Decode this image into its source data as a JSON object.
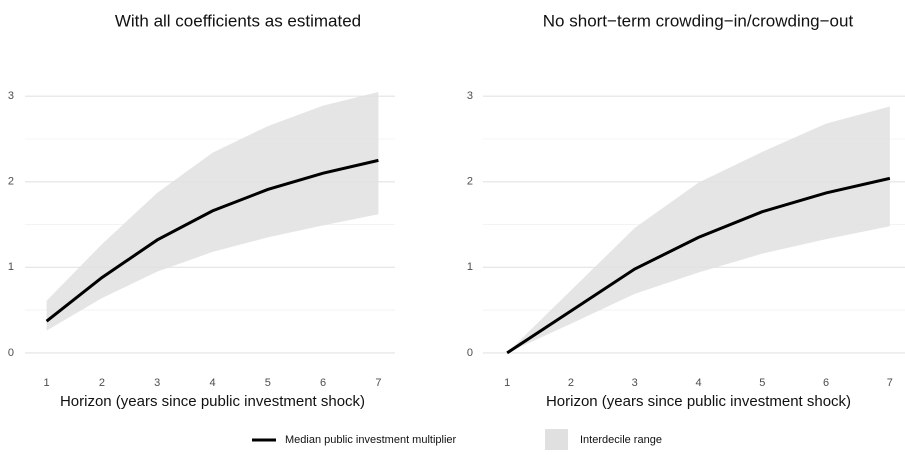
{
  "chart_data": [
    {
      "type": "line",
      "title": "With all coefficients as estimated",
      "x_label": "Horizon (years since public investment shock)",
      "x": [
        1,
        2,
        3,
        4,
        5,
        6,
        7
      ],
      "series": [
        {
          "name": "Median public investment multiplier",
          "color": "#000000",
          "values": [
            0.37,
            0.88,
            1.32,
            1.66,
            1.91,
            2.1,
            2.25
          ]
        },
        {
          "name": "Interdecile range",
          "color": "#e0e0e0",
          "lower": [
            0.26,
            0.64,
            0.95,
            1.18,
            1.35,
            1.49,
            1.62
          ],
          "upper": [
            0.61,
            1.27,
            1.87,
            2.34,
            2.65,
            2.89,
            3.05
          ]
        }
      ],
      "xlim": [
        0.7,
        7.3
      ],
      "xticks": [
        1,
        2,
        3,
        4,
        5,
        6,
        7
      ],
      "ylim": [
        -0.2,
        3.4
      ],
      "yticks": [
        0,
        1,
        2,
        3
      ],
      "y_minor_ticks": [
        0.5,
        1.5,
        2.5
      ],
      "grid": true
    },
    {
      "type": "line",
      "title": "No short−term crowding−in/crowding−out",
      "x_label": "Horizon (years since public investment shock)",
      "x": [
        1,
        2,
        3,
        4,
        5,
        6,
        7
      ],
      "series": [
        {
          "color": "#000000",
          "values": [
            0,
            0.49,
            0.98,
            1.35,
            1.65,
            1.87,
            2.04
          ]
        },
        {
          "color": "#e0e0e0",
          "lower": [
            0,
            0.34,
            0.69,
            0.94,
            1.16,
            1.33,
            1.48
          ],
          "upper": [
            0,
            0.73,
            1.46,
            1.99,
            2.35,
            2.68,
            2.88
          ]
        }
      ],
      "xlim": [
        0.7,
        7.3
      ],
      "xticks": [
        1,
        2,
        3,
        4,
        5,
        6,
        7
      ],
      "ylim": [
        -0.2,
        3.4
      ],
      "yticks": [
        0,
        1,
        2,
        3
      ],
      "y_minor_ticks": [
        0.5,
        1.5,
        2.5
      ],
      "grid": true
    }
  ]
}
